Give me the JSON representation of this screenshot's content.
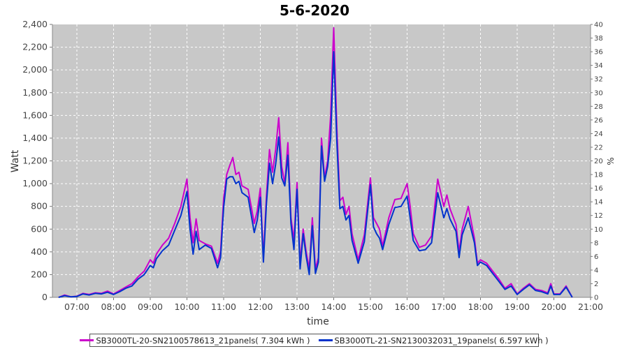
{
  "chart_data": {
    "type": "line",
    "title": "5-6-2020",
    "xlabel": "time",
    "ylabel": "Watt",
    "y2label": "%",
    "ylim": [
      0,
      2400
    ],
    "y2lim": [
      0,
      40
    ],
    "xlim": [
      "06:20",
      "21:00"
    ],
    "yticks": [
      "0",
      "200",
      "400",
      "600",
      "800",
      "1,000",
      "1,200",
      "1,400",
      "1,600",
      "1,800",
      "2,000",
      "2,200",
      "2,400"
    ],
    "y2ticks": [
      "0",
      "2",
      "4",
      "6",
      "8",
      "10",
      "12",
      "14",
      "16",
      "18",
      "20",
      "22",
      "24",
      "26",
      "28",
      "30",
      "32",
      "34",
      "36",
      "38",
      "40"
    ],
    "xticks": [
      "07:00",
      "08:00",
      "09:00",
      "10:00",
      "11:00",
      "12:00",
      "13:00",
      "14:00",
      "15:00",
      "16:00",
      "17:00",
      "18:00",
      "19:00",
      "20:00",
      "21:00"
    ],
    "grid": true,
    "legend_position": "bottom",
    "series": [
      {
        "name": "SB3000TL-20-SN2100578613_21panels( 7.304 kWh )",
        "color": "#cc00cc",
        "points": [
          [
            "06:30",
            0
          ],
          [
            "06:40",
            20
          ],
          [
            "06:50",
            5
          ],
          [
            "07:00",
            10
          ],
          [
            "07:10",
            35
          ],
          [
            "07:20",
            25
          ],
          [
            "07:30",
            40
          ],
          [
            "07:40",
            35
          ],
          [
            "07:50",
            55
          ],
          [
            "08:00",
            30
          ],
          [
            "08:10",
            60
          ],
          [
            "08:20",
            90
          ],
          [
            "08:30",
            120
          ],
          [
            "08:40",
            180
          ],
          [
            "08:50",
            230
          ],
          [
            "09:00",
            330
          ],
          [
            "09:05",
            300
          ],
          [
            "09:10",
            380
          ],
          [
            "09:20",
            460
          ],
          [
            "09:30",
            520
          ],
          [
            "09:40",
            650
          ],
          [
            "09:50",
            800
          ],
          [
            "10:00",
            1040
          ],
          [
            "10:05",
            700
          ],
          [
            "10:10",
            480
          ],
          [
            "10:15",
            690
          ],
          [
            "10:20",
            500
          ],
          [
            "10:30",
            470
          ],
          [
            "10:40",
            450
          ],
          [
            "10:50",
            300
          ],
          [
            "10:55",
            400
          ],
          [
            "11:00",
            870
          ],
          [
            "11:05",
            1080
          ],
          [
            "11:10",
            1160
          ],
          [
            "11:15",
            1230
          ],
          [
            "11:20",
            1080
          ],
          [
            "11:25",
            1100
          ],
          [
            "11:30",
            980
          ],
          [
            "11:40",
            950
          ],
          [
            "11:50",
            650
          ],
          [
            "11:55",
            760
          ],
          [
            "12:00",
            960
          ],
          [
            "12:05",
            350
          ],
          [
            "12:10",
            900
          ],
          [
            "12:15",
            1300
          ],
          [
            "12:20",
            1100
          ],
          [
            "12:25",
            1300
          ],
          [
            "12:30",
            1580
          ],
          [
            "12:35",
            1150
          ],
          [
            "12:40",
            1000
          ],
          [
            "12:45",
            1360
          ],
          [
            "12:50",
            700
          ],
          [
            "12:55",
            500
          ],
          [
            "13:00",
            1010
          ],
          [
            "13:05",
            300
          ],
          [
            "13:10",
            600
          ],
          [
            "13:15",
            400
          ],
          [
            "13:20",
            250
          ],
          [
            "13:25",
            700
          ],
          [
            "13:30",
            250
          ],
          [
            "13:35",
            350
          ],
          [
            "13:40",
            1400
          ],
          [
            "13:45",
            1050
          ],
          [
            "13:50",
            1200
          ],
          [
            "13:55",
            1600
          ],
          [
            "14:00",
            2370
          ],
          [
            "14:05",
            1500
          ],
          [
            "14:10",
            850
          ],
          [
            "14:15",
            880
          ],
          [
            "14:20",
            730
          ],
          [
            "14:25",
            800
          ],
          [
            "14:30",
            560
          ],
          [
            "14:40",
            330
          ],
          [
            "14:50",
            550
          ],
          [
            "15:00",
            1050
          ],
          [
            "15:05",
            700
          ],
          [
            "15:10",
            650
          ],
          [
            "15:15",
            600
          ],
          [
            "15:20",
            450
          ],
          [
            "15:30",
            700
          ],
          [
            "15:40",
            860
          ],
          [
            "15:50",
            870
          ],
          [
            "16:00",
            1000
          ],
          [
            "16:05",
            800
          ],
          [
            "16:10",
            560
          ],
          [
            "16:20",
            440
          ],
          [
            "16:30",
            460
          ],
          [
            "16:40",
            540
          ],
          [
            "16:50",
            1040
          ],
          [
            "17:00",
            800
          ],
          [
            "17:05",
            900
          ],
          [
            "17:10",
            780
          ],
          [
            "17:20",
            640
          ],
          [
            "17:25",
            400
          ],
          [
            "17:30",
            600
          ],
          [
            "17:40",
            800
          ],
          [
            "17:50",
            520
          ],
          [
            "17:55",
            300
          ],
          [
            "18:00",
            330
          ],
          [
            "18:10",
            300
          ],
          [
            "18:20",
            230
          ],
          [
            "18:30",
            160
          ],
          [
            "18:40",
            80
          ],
          [
            "18:50",
            120
          ],
          [
            "19:00",
            30
          ],
          [
            "19:10",
            80
          ],
          [
            "19:20",
            120
          ],
          [
            "19:30",
            70
          ],
          [
            "19:40",
            60
          ],
          [
            "19:50",
            40
          ],
          [
            "19:55",
            120
          ],
          [
            "20:00",
            30
          ],
          [
            "20:10",
            30
          ],
          [
            "20:20",
            100
          ],
          [
            "20:30",
            0
          ]
        ]
      },
      {
        "name": "SB3000TL-21-SN2130032031_19panels( 6.597 kWh )",
        "color": "#0033cc",
        "points": [
          [
            "06:30",
            0
          ],
          [
            "06:40",
            15
          ],
          [
            "06:50",
            5
          ],
          [
            "07:00",
            8
          ],
          [
            "07:10",
            30
          ],
          [
            "07:20",
            20
          ],
          [
            "07:30",
            35
          ],
          [
            "07:40",
            30
          ],
          [
            "07:50",
            45
          ],
          [
            "08:00",
            25
          ],
          [
            "08:10",
            50
          ],
          [
            "08:20",
            80
          ],
          [
            "08:30",
            100
          ],
          [
            "08:40",
            160
          ],
          [
            "08:50",
            200
          ],
          [
            "09:00",
            280
          ],
          [
            "09:05",
            260
          ],
          [
            "09:10",
            340
          ],
          [
            "09:20",
            410
          ],
          [
            "09:30",
            460
          ],
          [
            "09:40",
            590
          ],
          [
            "09:50",
            720
          ],
          [
            "10:00",
            930
          ],
          [
            "10:05",
            600
          ],
          [
            "10:10",
            380
          ],
          [
            "10:15",
            580
          ],
          [
            "10:20",
            420
          ],
          [
            "10:30",
            460
          ],
          [
            "10:40",
            430
          ],
          [
            "10:50",
            260
          ],
          [
            "10:55",
            350
          ],
          [
            "11:00",
            790
          ],
          [
            "11:05",
            1040
          ],
          [
            "11:10",
            1060
          ],
          [
            "11:15",
            1060
          ],
          [
            "11:20",
            1000
          ],
          [
            "11:25",
            1020
          ],
          [
            "11:30",
            920
          ],
          [
            "11:40",
            880
          ],
          [
            "11:50",
            570
          ],
          [
            "11:55",
            680
          ],
          [
            "12:00",
            880
          ],
          [
            "12:05",
            310
          ],
          [
            "12:10",
            830
          ],
          [
            "12:15",
            1180
          ],
          [
            "12:20",
            1000
          ],
          [
            "12:25",
            1170
          ],
          [
            "12:30",
            1410
          ],
          [
            "12:35",
            1050
          ],
          [
            "12:40",
            980
          ],
          [
            "12:45",
            1250
          ],
          [
            "12:50",
            650
          ],
          [
            "12:55",
            420
          ],
          [
            "13:00",
            950
          ],
          [
            "13:05",
            250
          ],
          [
            "13:10",
            560
          ],
          [
            "13:15",
            360
          ],
          [
            "13:20",
            200
          ],
          [
            "13:25",
            630
          ],
          [
            "13:30",
            210
          ],
          [
            "13:35",
            310
          ],
          [
            "13:40",
            1330
          ],
          [
            "13:45",
            1020
          ],
          [
            "13:50",
            1150
          ],
          [
            "13:55",
            1400
          ],
          [
            "14:00",
            2160
          ],
          [
            "14:05",
            1380
          ],
          [
            "14:10",
            780
          ],
          [
            "14:15",
            800
          ],
          [
            "14:20",
            680
          ],
          [
            "14:25",
            720
          ],
          [
            "14:30",
            500
          ],
          [
            "14:40",
            300
          ],
          [
            "14:50",
            490
          ],
          [
            "15:00",
            990
          ],
          [
            "15:05",
            620
          ],
          [
            "15:10",
            560
          ],
          [
            "15:15",
            520
          ],
          [
            "15:20",
            420
          ],
          [
            "15:30",
            640
          ],
          [
            "15:40",
            790
          ],
          [
            "15:50",
            800
          ],
          [
            "16:00",
            890
          ],
          [
            "16:05",
            700
          ],
          [
            "16:10",
            500
          ],
          [
            "16:20",
            410
          ],
          [
            "16:30",
            420
          ],
          [
            "16:40",
            480
          ],
          [
            "16:50",
            920
          ],
          [
            "17:00",
            700
          ],
          [
            "17:05",
            780
          ],
          [
            "17:10",
            690
          ],
          [
            "17:20",
            580
          ],
          [
            "17:25",
            350
          ],
          [
            "17:30",
            550
          ],
          [
            "17:40",
            700
          ],
          [
            "17:50",
            480
          ],
          [
            "17:55",
            280
          ],
          [
            "18:00",
            310
          ],
          [
            "18:10",
            280
          ],
          [
            "18:20",
            210
          ],
          [
            "18:30",
            140
          ],
          [
            "18:40",
            70
          ],
          [
            "18:50",
            100
          ],
          [
            "19:00",
            25
          ],
          [
            "19:10",
            70
          ],
          [
            "19:20",
            110
          ],
          [
            "19:30",
            60
          ],
          [
            "19:40",
            50
          ],
          [
            "19:50",
            30
          ],
          [
            "19:55",
            100
          ],
          [
            "20:00",
            25
          ],
          [
            "20:10",
            25
          ],
          [
            "20:20",
            90
          ],
          [
            "20:30",
            0
          ]
        ]
      }
    ]
  }
}
